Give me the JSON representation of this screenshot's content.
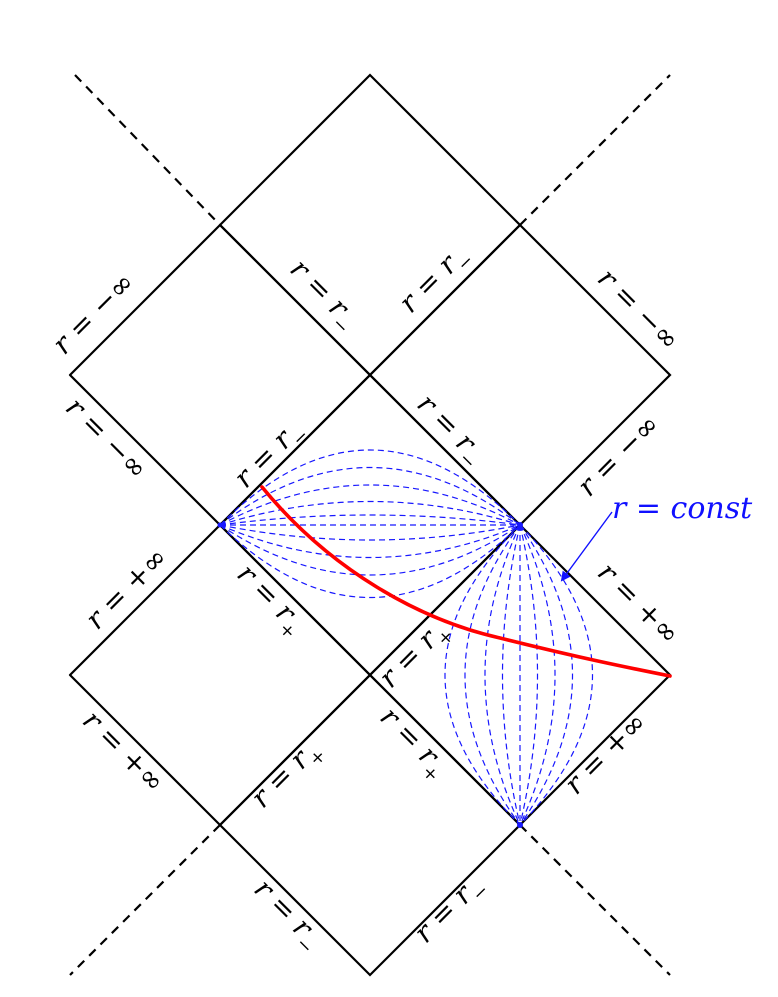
{
  "labels": {
    "r_minus": "r = r",
    "r_plus": "r = r",
    "sub_minus": "−",
    "sub_plus": "+",
    "r_neg_inf": "r = −∞",
    "r_pos_inf": "r = +∞",
    "r_const": "r = const"
  },
  "colors": {
    "lines": "#000000",
    "dashed_curves": "#1818ff",
    "trajectory": "#ff0000",
    "annotation": "#1010ff"
  }
}
